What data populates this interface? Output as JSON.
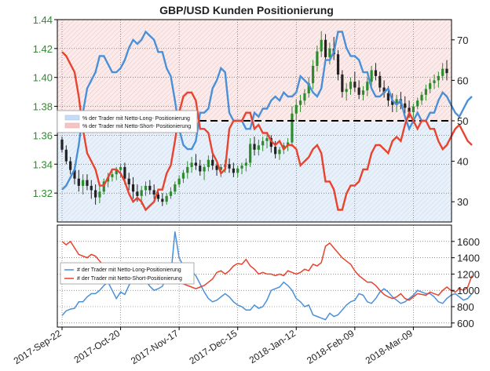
{
  "chart_data": [
    {
      "type": "line",
      "title": "GBP/USD Kunden Positionierung",
      "price_axis": {
        "side": "left",
        "ticks": [
          "1.32",
          "1.34",
          "1.36",
          "1.38",
          "1.40",
          "1.42",
          "1.44"
        ],
        "ylim": [
          1.3,
          1.44
        ],
        "color": "#2e8b2e"
      },
      "percent_axis": {
        "side": "right",
        "ticks": [
          "30",
          "40",
          "50",
          "60",
          "70"
        ],
        "ylim": [
          25,
          75
        ]
      },
      "reference_line": {
        "value": 50,
        "style": "dashed"
      },
      "price_ohlc": [
        [
          1.357,
          1.359,
          1.348,
          1.35
        ],
        [
          1.35,
          1.353,
          1.34,
          1.342
        ],
        [
          1.342,
          1.345,
          1.333,
          1.336
        ],
        [
          1.336,
          1.339,
          1.326,
          1.33
        ],
        [
          1.33,
          1.336,
          1.321,
          1.325
        ],
        [
          1.325,
          1.333,
          1.319,
          1.329
        ],
        [
          1.329,
          1.333,
          1.322,
          1.325
        ],
        [
          1.325,
          1.329,
          1.316,
          1.322
        ],
        [
          1.322,
          1.326,
          1.312,
          1.317
        ],
        [
          1.317,
          1.325,
          1.313,
          1.321
        ],
        [
          1.321,
          1.33,
          1.319,
          1.328
        ],
        [
          1.328,
          1.334,
          1.324,
          1.331
        ],
        [
          1.331,
          1.336,
          1.328,
          1.333
        ],
        [
          1.333,
          1.338,
          1.329,
          1.336
        ],
        [
          1.336,
          1.34,
          1.331,
          1.338
        ],
        [
          1.338,
          1.341,
          1.326,
          1.33
        ],
        [
          1.33,
          1.334,
          1.322,
          1.326
        ],
        [
          1.326,
          1.331,
          1.316,
          1.321
        ],
        [
          1.321,
          1.326,
          1.314,
          1.318
        ],
        [
          1.318,
          1.325,
          1.312,
          1.322
        ],
        [
          1.322,
          1.328,
          1.318,
          1.325
        ],
        [
          1.325,
          1.329,
          1.319,
          1.322
        ],
        [
          1.322,
          1.326,
          1.316,
          1.319
        ],
        [
          1.319,
          1.323,
          1.314,
          1.316
        ],
        [
          1.316,
          1.32,
          1.311,
          1.314
        ],
        [
          1.314,
          1.32,
          1.312,
          1.318
        ],
        [
          1.318,
          1.324,
          1.316,
          1.321
        ],
        [
          1.321,
          1.328,
          1.319,
          1.326
        ],
        [
          1.326,
          1.332,
          1.324,
          1.33
        ],
        [
          1.33,
          1.336,
          1.327,
          1.334
        ],
        [
          1.334,
          1.342,
          1.33,
          1.338
        ],
        [
          1.338,
          1.345,
          1.334,
          1.341
        ],
        [
          1.341,
          1.347,
          1.336,
          1.339
        ],
        [
          1.339,
          1.343,
          1.332,
          1.335
        ],
        [
          1.335,
          1.34,
          1.329,
          1.338
        ],
        [
          1.338,
          1.346,
          1.335,
          1.343
        ],
        [
          1.343,
          1.348,
          1.336,
          1.339
        ],
        [
          1.339,
          1.342,
          1.332,
          1.336
        ],
        [
          1.336,
          1.34,
          1.331,
          1.338
        ],
        [
          1.338,
          1.343,
          1.334,
          1.34
        ],
        [
          1.34,
          1.344,
          1.334,
          1.337
        ],
        [
          1.337,
          1.341,
          1.331,
          1.334
        ],
        [
          1.334,
          1.339,
          1.331,
          1.337
        ],
        [
          1.337,
          1.341,
          1.333,
          1.339
        ],
        [
          1.339,
          1.344,
          1.335,
          1.341
        ],
        [
          1.341,
          1.358,
          1.338,
          1.354
        ],
        [
          1.354,
          1.359,
          1.346,
          1.35
        ],
        [
          1.35,
          1.357,
          1.346,
          1.353
        ],
        [
          1.353,
          1.359,
          1.349,
          1.356
        ],
        [
          1.356,
          1.362,
          1.351,
          1.358
        ],
        [
          1.358,
          1.36,
          1.348,
          1.352
        ],
        [
          1.352,
          1.356,
          1.344,
          1.347
        ],
        [
          1.347,
          1.352,
          1.343,
          1.35
        ],
        [
          1.35,
          1.355,
          1.347,
          1.353
        ],
        [
          1.353,
          1.358,
          1.349,
          1.355
        ],
        [
          1.355,
          1.38,
          1.352,
          1.375
        ],
        [
          1.375,
          1.385,
          1.37,
          1.381
        ],
        [
          1.381,
          1.388,
          1.376,
          1.384
        ],
        [
          1.384,
          1.392,
          1.381,
          1.389
        ],
        [
          1.389,
          1.4,
          1.386,
          1.396
        ],
        [
          1.396,
          1.412,
          1.392,
          1.408
        ],
        [
          1.408,
          1.422,
          1.404,
          1.418
        ],
        [
          1.418,
          1.432,
          1.414,
          1.426
        ],
        [
          1.426,
          1.43,
          1.41,
          1.414
        ],
        [
          1.414,
          1.424,
          1.409,
          1.42
        ],
        [
          1.42,
          1.428,
          1.412,
          1.416
        ],
        [
          1.416,
          1.419,
          1.398,
          1.402
        ],
        [
          1.402,
          1.405,
          1.386,
          1.39
        ],
        [
          1.39,
          1.396,
          1.384,
          1.392
        ],
        [
          1.392,
          1.4,
          1.388,
          1.397
        ],
        [
          1.397,
          1.404,
          1.39,
          1.393
        ],
        [
          1.393,
          1.398,
          1.385,
          1.388
        ],
        [
          1.388,
          1.394,
          1.384,
          1.391
        ],
        [
          1.391,
          1.4,
          1.387,
          1.397
        ],
        [
          1.397,
          1.408,
          1.394,
          1.405
        ],
        [
          1.405,
          1.41,
          1.398,
          1.401
        ],
        [
          1.401,
          1.404,
          1.39,
          1.393
        ],
        [
          1.393,
          1.398,
          1.386,
          1.389
        ],
        [
          1.389,
          1.394,
          1.38,
          1.384
        ],
        [
          1.384,
          1.389,
          1.376,
          1.381
        ],
        [
          1.381,
          1.388,
          1.376,
          1.385
        ],
        [
          1.385,
          1.39,
          1.378,
          1.382
        ],
        [
          1.382,
          1.387,
          1.375,
          1.379
        ],
        [
          1.379,
          1.384,
          1.372,
          1.376
        ],
        [
          1.376,
          1.382,
          1.372,
          1.38
        ],
        [
          1.38,
          1.386,
          1.378,
          1.384
        ],
        [
          1.384,
          1.39,
          1.381,
          1.388
        ],
        [
          1.388,
          1.395,
          1.384,
          1.392
        ],
        [
          1.392,
          1.399,
          1.389,
          1.396
        ],
        [
          1.396,
          1.402,
          1.392,
          1.398
        ],
        [
          1.398,
          1.404,
          1.393,
          1.401
        ],
        [
          1.401,
          1.41,
          1.398,
          1.406
        ],
        [
          1.406,
          1.412,
          1.398,
          1.403
        ]
      ],
      "net_long_percent": [
        33,
        34,
        36,
        38,
        44,
        52,
        58,
        60,
        62,
        66,
        66,
        64,
        62,
        62,
        63,
        65,
        68,
        70,
        69,
        70,
        72,
        71,
        70,
        67,
        67,
        63,
        61,
        55,
        48,
        44,
        43,
        43,
        45,
        52,
        52,
        53,
        58,
        60,
        63,
        62,
        52,
        50,
        50,
        50,
        48,
        48,
        52,
        51,
        53,
        53,
        55,
        56,
        55,
        57,
        56,
        56,
        57,
        61,
        60,
        59,
        57,
        56,
        58,
        65,
        65,
        67,
        72,
        72,
        68,
        66,
        66,
        65,
        62,
        62,
        58,
        56,
        56,
        57,
        58,
        55,
        54,
        55,
        51,
        48,
        50,
        52,
        50,
        50,
        52,
        52,
        55,
        57,
        56,
        54,
        52,
        51,
        53,
        55,
        56
      ],
      "net_short_percent": [
        67,
        66,
        64,
        62,
        56,
        48,
        42,
        40,
        38,
        34,
        34,
        36,
        38,
        38,
        37,
        35,
        32,
        30,
        31,
        30,
        28,
        29,
        30,
        33,
        33,
        37,
        39,
        45,
        52,
        56,
        57,
        57,
        55,
        48,
        48,
        47,
        42,
        40,
        37,
        38,
        48,
        50,
        50,
        50,
        52,
        52,
        48,
        49,
        47,
        47,
        45,
        44,
        45,
        43,
        44,
        44,
        43,
        39,
        40,
        41,
        43,
        44,
        42,
        35,
        35,
        33,
        28,
        28,
        32,
        34,
        34,
        35,
        38,
        38,
        42,
        44,
        44,
        43,
        42,
        45,
        46,
        45,
        49,
        52,
        50,
        48,
        50,
        50,
        48,
        48,
        45,
        43,
        44,
        46,
        48,
        49,
        47,
        45,
        44
      ],
      "legend": [
        "% der Trader mit Netto-Long- Positionierung",
        "% der Trader mit Netto-Short- Positionierung"
      ],
      "legend_colors": [
        "#4a90d9",
        "#e8432e"
      ]
    },
    {
      "type": "line",
      "count_axis": {
        "side": "right",
        "ticks": [
          "600",
          "800",
          "1000",
          "1200",
          "1400",
          "1600"
        ],
        "ylim": [
          550,
          1800
        ]
      },
      "x_tick_labels": [
        "2017-Sep-22",
        "2017-Oct-20",
        "2017-Nov-17",
        "2017-Dec-15",
        "2018-Jan-12",
        "2018-Feb-09",
        "2018-Mar-09"
      ],
      "x_label_positions": [
        0,
        14,
        28,
        42,
        56,
        70,
        84
      ],
      "net_long_count": [
        690,
        750,
        770,
        780,
        860,
        860,
        920,
        960,
        960,
        1000,
        1060,
        1100,
        1000,
        900,
        980,
        950,
        1060,
        1140,
        1100,
        1080,
        1120,
        1050,
        1000,
        1020,
        1050,
        1160,
        1180,
        1720,
        1400,
        1300,
        1280,
        1240,
        1180,
        1080,
        980,
        900,
        860,
        880,
        920,
        960,
        920,
        860,
        820,
        800,
        760,
        760,
        820,
        780,
        800,
        880,
        1000,
        1020,
        1040,
        1100,
        1060,
        1000,
        900,
        860,
        800,
        820,
        700,
        680,
        660,
        640,
        720,
        680,
        700,
        760,
        820,
        860,
        880,
        960,
        940,
        860,
        840,
        900,
        980,
        1020,
        980,
        920,
        880,
        840,
        860,
        900,
        940,
        1000,
        980,
        960,
        960,
        920,
        860,
        840,
        900,
        940,
        960,
        920,
        880,
        900,
        960
      ],
      "net_short_count": [
        1600,
        1560,
        1600,
        1520,
        1440,
        1420,
        1400,
        1440,
        1420,
        1360,
        1300,
        1240,
        1240,
        1200,
        1220,
        1280,
        1260,
        1220,
        1200,
        1160,
        1120,
        1080,
        1100,
        1080,
        1180,
        1200,
        1160,
        1120,
        1100,
        1080,
        1060,
        1040,
        1020,
        1040,
        1060,
        1100,
        1140,
        1220,
        1240,
        1200,
        1240,
        1300,
        1330,
        1320,
        1380,
        1300,
        1260,
        1200,
        1220,
        1200,
        1200,
        1180,
        1200,
        1180,
        1240,
        1220,
        1200,
        1220,
        1260,
        1240,
        1320,
        1300,
        1340,
        1540,
        1580,
        1520,
        1460,
        1400,
        1360,
        1320,
        1240,
        1180,
        1140,
        1100,
        1100,
        1060,
        1000,
        950,
        920,
        900,
        920,
        960,
        900,
        880,
        920,
        960,
        950,
        940,
        980,
        960,
        940,
        1000,
        1040,
        1000,
        980,
        1020,
        1000,
        1040,
        1180
      ],
      "legend": [
        "# der Trader mit Netto-Long-Positionierung",
        "# der Trader mit Netto-Short-Positionierung"
      ],
      "legend_colors": [
        "#4a90d9",
        "#e8432e"
      ]
    }
  ],
  "colors": {
    "price_up": "#2e8b2e",
    "price_down": "#222222",
    "long": "#4a90d9",
    "short": "#e8432e"
  }
}
